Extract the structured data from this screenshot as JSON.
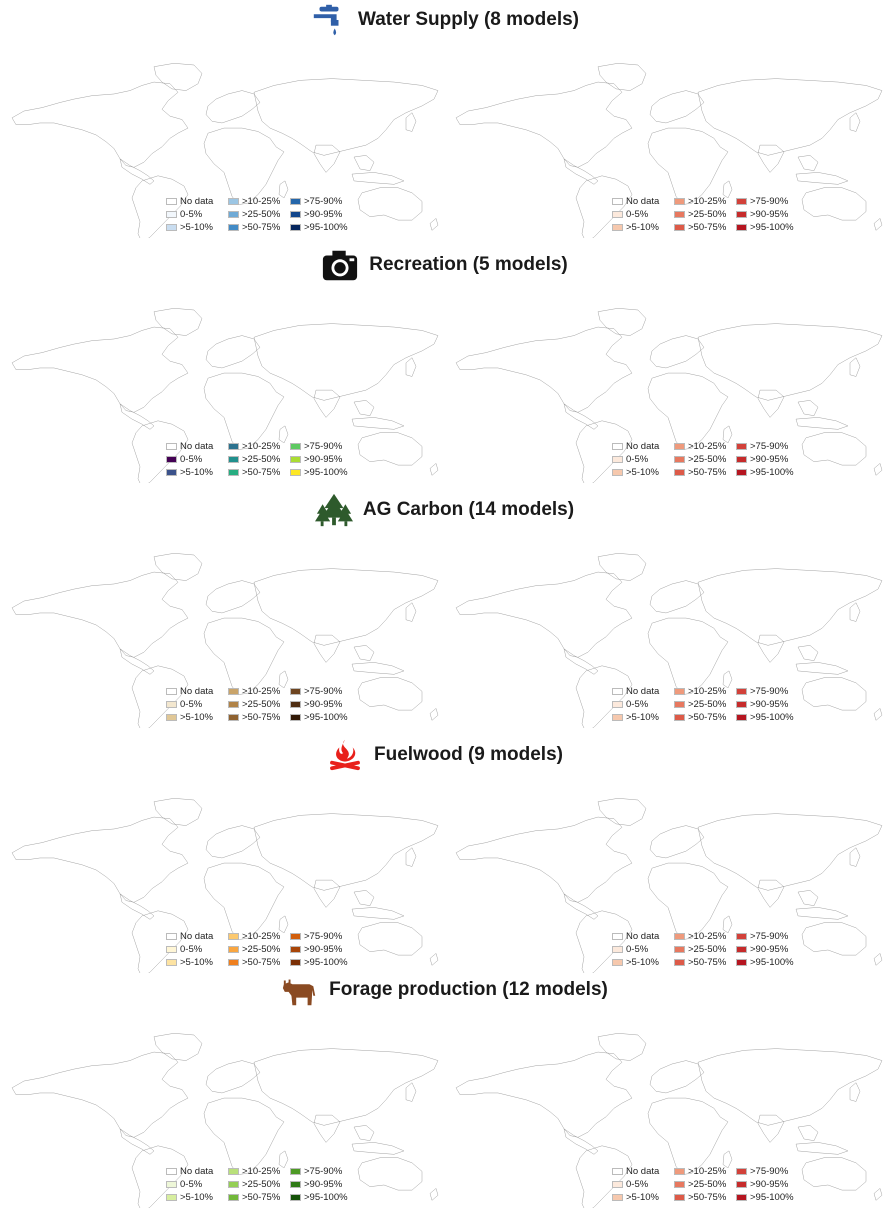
{
  "legend_labels": [
    "No data",
    "0-5%",
    ">5-10%",
    ">10-25%",
    ">25-50%",
    ">50-75%",
    ">75-90%",
    ">90-95%",
    ">95-100%"
  ],
  "red_palette": [
    "#ffffff",
    "#fce9dc",
    "#f6c8ad",
    "#ef9a7c",
    "#e7785f",
    "#dd5a48",
    "#d2413a",
    "#c62b2b",
    "#b51520"
  ],
  "sections": [
    {
      "title": "Water Supply (8 models)",
      "icon": "water-tap-icon",
      "icon_color": "#2f5fa8",
      "palette": [
        "#ffffff",
        "#f2f7fc",
        "#c9ddf0",
        "#9cc6e4",
        "#6faad6",
        "#428bc6",
        "#2466aa",
        "#12468c",
        "#06265e"
      ]
    },
    {
      "title": "Recreation (5 models)",
      "icon": "camera-icon",
      "icon_color": "#111111",
      "palette": [
        "#ffffff",
        "#440154",
        "#3b528b",
        "#2c728e",
        "#21908d",
        "#27ad81",
        "#5ec962",
        "#aadc32",
        "#fde725"
      ]
    },
    {
      "title": "AG Carbon (14 models)",
      "icon": "forest-trees-icon",
      "icon_color": "#2e5a2c",
      "palette": [
        "#ffffff",
        "#f3e7cf",
        "#e0c796",
        "#c9a46a",
        "#b08348",
        "#8f6230",
        "#6e4520",
        "#4f2d12",
        "#311906"
      ]
    },
    {
      "title": "Fuelwood (9 models)",
      "icon": "campfire-icon",
      "icon_color": "#e8201a",
      "palette": [
        "#ffffff",
        "#fff6d6",
        "#fde3a2",
        "#fcc96f",
        "#f9a640",
        "#ef7f1e",
        "#d15e0c",
        "#a84508",
        "#7a2f05"
      ]
    },
    {
      "title": "Forage production (12 models)",
      "icon": "cow-icon",
      "icon_color": "#8a4a22",
      "palette": [
        "#ffffff",
        "#eef7d8",
        "#d7ee9f",
        "#b9e07a",
        "#95cf55",
        "#72b83a",
        "#4e9a25",
        "#2f7a16",
        "#145208"
      ]
    }
  ]
}
